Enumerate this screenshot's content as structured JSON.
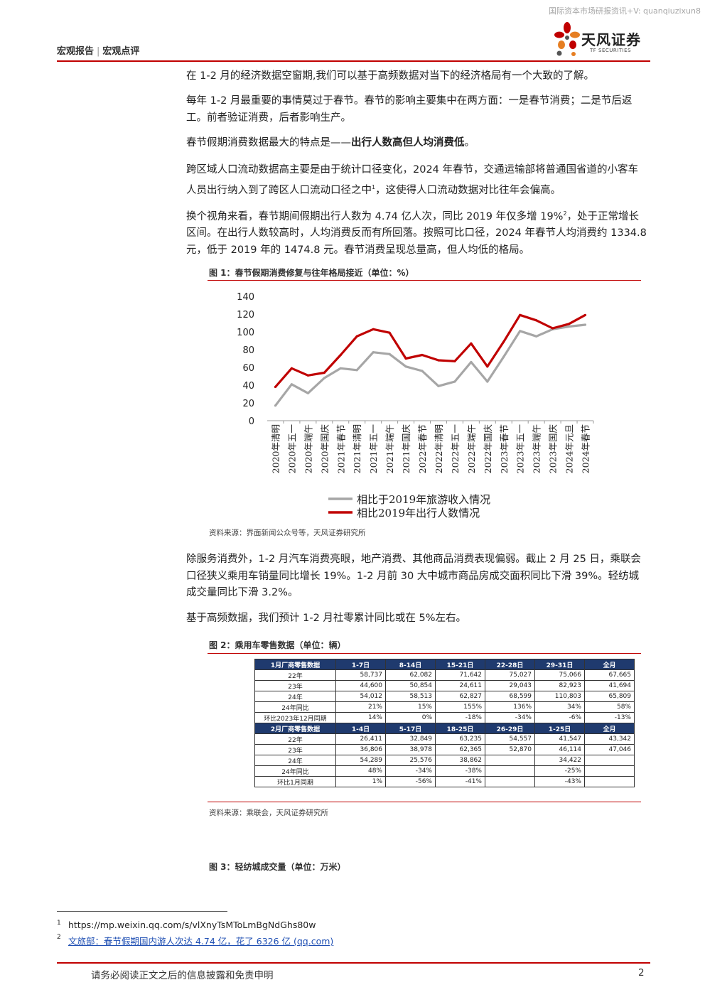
{
  "watermark": "国际资本市场研报资讯+V: quanqiuzixun8",
  "header": {
    "left1": "宏观报告",
    "sep": "|",
    "left2": "宏观点评"
  },
  "logo": {
    "cn": "天风证券",
    "en": "TF SECURITIES"
  },
  "paragraphs": {
    "p1": "在 1-2 月的经济数据空窗期,我们可以基于高频数据对当下的经济格局有一个大致的了解。",
    "p2": "每年 1-2 月最重要的事情莫过于春节。春节的影响主要集中在两方面：一是春节消费；二是节后返工。前者验证消费，后者影响生产。",
    "p3a": "春节假期消费数据最大的特点是——",
    "p3b": "出行人数高但人均消费低",
    "p3c": "。",
    "p4a": "跨区域人口流动数据高主要是由于统计口径变化，2024 年春节，交通运输部将普通国省道的小客车人员出行纳入到了跨区人口流动口径之中",
    "p4sup": "1",
    "p4b": "，这使得人口流动数据对比往年会偏高。",
    "p5a": "换个视角来看，春节期间假期出行人数为 4.74 亿人次，同比 2019 年仅多增 19%",
    "p5sup": "2",
    "p5b": "，处于正常增长区间。在出行人数较高时，人均消费反而有所回落。按照可比口径，2024 年春节人均消费约 1334.8 元，低于 2019 年的 1474.8 元。春节消费呈现总量高，但人均低的格局。",
    "p6": "除服务消费外，1-2 月汽车消费亮眼，地产消费、其他商品消费表现偏弱。截止 2 月 25 日，乘联会口径狭义乘用车销量同比增长 19%。1-2 月前 30 大中城市商品房成交面积同比下滑 39%。轻纺城成交量同比下滑 3.2%。",
    "p7": "基于高频数据，我们预计 1-2 月社零累计同比或在 5%左右。"
  },
  "figure1": {
    "title": "图 1：春节假期消费修复与往年格局接近（单位：%）",
    "source": "资料来源：界面新闻公众号等，天风证券研究所"
  },
  "chart_data": {
    "type": "line",
    "categories": [
      "2020年清明",
      "2020年五一",
      "2020年端午",
      "2020年国庆",
      "2021年春节",
      "2021年清明",
      "2021年五一",
      "2021年端午",
      "2021年国庆",
      "2022年春节",
      "2022年清明",
      "2022年五一",
      "2022年端午",
      "2022年国庆",
      "2023年春节",
      "2023年五一",
      "2023年端午",
      "2023年国庆",
      "2024年元旦",
      "2024年春节"
    ],
    "series": [
      {
        "name": "相比于2019年旅游收入情况",
        "color": "#a6a6a6",
        "values": [
          17,
          41,
          31,
          48,
          59,
          57,
          77,
          75,
          61,
          56,
          39,
          44,
          66,
          44,
          72,
          101,
          95,
          103,
          106,
          108
        ]
      },
      {
        "name": "相比2019年出行人数情况",
        "color": "#c00000",
        "values": [
          38,
          59,
          51,
          54,
          74,
          95,
          103,
          99,
          70,
          74,
          68,
          67,
          87,
          61,
          89,
          119,
          113,
          104,
          109,
          119
        ]
      }
    ],
    "yticks": [
      "0",
      "20",
      "40",
      "60",
      "80",
      "100",
      "120",
      "140"
    ],
    "ylim": [
      0,
      140
    ],
    "grid": false,
    "legend": "bottom"
  },
  "figure2": {
    "title": "图 2：乘用车零售数据（单位：辆）",
    "source": "资料来源：乘联会，天风证券研究所",
    "table1": {
      "header": [
        "1月厂商零售数据",
        "1-7日",
        "8-14日",
        "15-21日",
        "22-28日",
        "29-31日",
        "全月"
      ],
      "rows": [
        [
          "22年",
          "58,737",
          "62,082",
          "71,642",
          "75,027",
          "75,066",
          "67,665"
        ],
        [
          "23年",
          "44,600",
          "50,854",
          "24,611",
          "29,043",
          "82,923",
          "41,694"
        ],
        [
          "24年",
          "54,012",
          "58,513",
          "62,827",
          "68,599",
          "110,803",
          "65,809"
        ],
        [
          "24年同比",
          "21%",
          "15%",
          "155%",
          "136%",
          "34%",
          "58%"
        ],
        [
          "环比2023年12月同期",
          "14%",
          "0%",
          "-18%",
          "-34%",
          "-6%",
          "-13%"
        ]
      ]
    },
    "table2": {
      "header": [
        "2月厂商零售数据",
        "1-4日",
        "5-17日",
        "18-25日",
        "26-29日",
        "1-25日",
        "全月"
      ],
      "rows": [
        [
          "22年",
          "26,411",
          "32,849",
          "63,235",
          "54,557",
          "41,547",
          "43,342"
        ],
        [
          "23年",
          "36,806",
          "38,978",
          "62,365",
          "52,870",
          "46,114",
          "47,046"
        ],
        [
          "24年",
          "54,289",
          "25,576",
          "38,862",
          "",
          "34,422",
          ""
        ],
        [
          "24年同比",
          "48%",
          "-34%",
          "-38%",
          "",
          "-25%",
          ""
        ],
        [
          "环比1月同期",
          "1%",
          "-56%",
          "-41%",
          "",
          "-43%",
          ""
        ]
      ]
    }
  },
  "figure3": {
    "title": "图 3：轻纺城成交量（单位：万米）"
  },
  "footnotes": {
    "n1": "1",
    "t1": "https://mp.weixin.qq.com/s/vlXnyTsMToLmBgNdGhs80w",
    "n2": "2",
    "t2": "文旅部：春节假期国内游人次达 4.74 亿，花了 6326 亿 (qq.com)"
  },
  "footer": {
    "disclaimer": "请务必阅读正文之后的信息披露和免责申明",
    "page": "2"
  }
}
